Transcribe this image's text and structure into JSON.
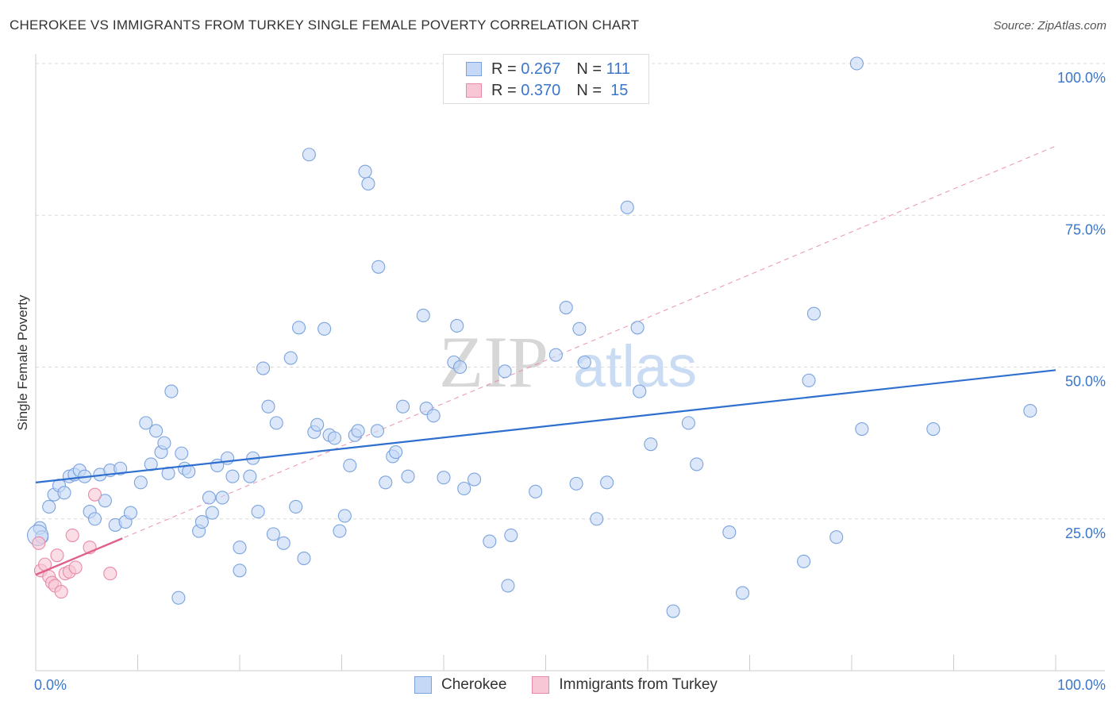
{
  "chart_data": {
    "type": "scatter",
    "title": "CHEROKEE VS IMMIGRANTS FROM TURKEY SINGLE FEMALE POVERTY CORRELATION CHART",
    "source": "Source: ZipAtlas.com",
    "ylabel": "Single Female Poverty",
    "xlim": [
      0,
      100
    ],
    "ylim": [
      0,
      100
    ],
    "x_tick_labels": [
      "0.0%",
      "100.0%"
    ],
    "y_ticks": [
      25,
      50,
      75,
      100
    ],
    "y_tick_labels": [
      "25.0%",
      "50.0%",
      "75.0%",
      "100.0%"
    ],
    "watermark": {
      "zip": "ZIP",
      "atlas": "atlas"
    },
    "legend": [
      {
        "series": "Cherokee",
        "r_label": "R =",
        "r": "0.267",
        "n_label": "N =",
        "n": "111"
      },
      {
        "series": "Immigrants from Turkey",
        "r_label": "R =",
        "r": "0.370",
        "n_label": "N =",
        "n": "15"
      }
    ],
    "colors": {
      "cherokee_fill": "#c5d8f5",
      "cherokee_stroke": "#7aa3de",
      "cherokee_line": "#2f6fcf",
      "turkey_fill": "#f8c7d6",
      "turkey_stroke": "#e98aa8",
      "turkey_line": "#e0608a",
      "grid": "#d9d9d9"
    },
    "series": [
      {
        "name": "Cherokee",
        "trend": {
          "x0": 0,
          "y0": 31.0,
          "x1": 100,
          "y1": 49.5
        },
        "points": [
          [
            0.4,
            23.5
          ],
          [
            0.6,
            22.0
          ],
          [
            1.3,
            27.0
          ],
          [
            1.8,
            29.0
          ],
          [
            2.3,
            30.5
          ],
          [
            2.8,
            29.3
          ],
          [
            3.3,
            32.0
          ],
          [
            3.8,
            32.3
          ],
          [
            4.3,
            33.0
          ],
          [
            4.8,
            32.0
          ],
          [
            5.3,
            26.2
          ],
          [
            5.8,
            25.0
          ],
          [
            6.3,
            32.3
          ],
          [
            6.8,
            28.0
          ],
          [
            7.3,
            33.0
          ],
          [
            7.8,
            24.0
          ],
          [
            8.3,
            33.3
          ],
          [
            8.8,
            24.5
          ],
          [
            9.3,
            26.0
          ],
          [
            10.3,
            31.0
          ],
          [
            10.8,
            40.8
          ],
          [
            11.3,
            34.0
          ],
          [
            11.8,
            39.5
          ],
          [
            12.3,
            36.0
          ],
          [
            12.6,
            37.5
          ],
          [
            13.0,
            32.5
          ],
          [
            13.3,
            46.0
          ],
          [
            14.0,
            12.0
          ],
          [
            14.3,
            35.8
          ],
          [
            14.6,
            33.3
          ],
          [
            15.0,
            32.8
          ],
          [
            16.0,
            23.0
          ],
          [
            16.3,
            24.5
          ],
          [
            17.0,
            28.5
          ],
          [
            17.3,
            26.0
          ],
          [
            17.8,
            33.8
          ],
          [
            18.3,
            28.5
          ],
          [
            18.8,
            35.0
          ],
          [
            19.3,
            32.0
          ],
          [
            20.0,
            20.3
          ],
          [
            20.0,
            16.5
          ],
          [
            21.0,
            32.0
          ],
          [
            21.3,
            35.0
          ],
          [
            21.8,
            26.2
          ],
          [
            22.3,
            49.8
          ],
          [
            22.8,
            43.5
          ],
          [
            23.3,
            22.5
          ],
          [
            23.6,
            40.8
          ],
          [
            24.3,
            21.0
          ],
          [
            25.0,
            51.5
          ],
          [
            25.5,
            27.0
          ],
          [
            25.8,
            56.5
          ],
          [
            26.3,
            18.5
          ],
          [
            26.8,
            85.0
          ],
          [
            27.3,
            39.3
          ],
          [
            27.6,
            40.5
          ],
          [
            28.3,
            56.3
          ],
          [
            28.8,
            38.8
          ],
          [
            29.3,
            38.3
          ],
          [
            29.8,
            23.0
          ],
          [
            30.3,
            25.5
          ],
          [
            30.8,
            33.8
          ],
          [
            31.3,
            38.8
          ],
          [
            31.6,
            39.5
          ],
          [
            32.3,
            82.2
          ],
          [
            32.6,
            80.2
          ],
          [
            33.5,
            39.5
          ],
          [
            33.6,
            66.5
          ],
          [
            34.3,
            31.0
          ],
          [
            35.0,
            35.3
          ],
          [
            35.3,
            36.0
          ],
          [
            36.0,
            43.5
          ],
          [
            36.5,
            32.0
          ],
          [
            38.0,
            58.5
          ],
          [
            38.3,
            43.2
          ],
          [
            39.0,
            42.0
          ],
          [
            40.0,
            31.8
          ],
          [
            41.0,
            50.8
          ],
          [
            41.3,
            56.8
          ],
          [
            41.6,
            50.0
          ],
          [
            42.0,
            30.0
          ],
          [
            43.0,
            31.5
          ],
          [
            44.5,
            21.3
          ],
          [
            46.0,
            49.3
          ],
          [
            46.3,
            14.0
          ],
          [
            46.6,
            22.3
          ],
          [
            49.0,
            29.5
          ],
          [
            51.0,
            52.0
          ],
          [
            52.0,
            59.8
          ],
          [
            53.0,
            30.8
          ],
          [
            53.3,
            56.3
          ],
          [
            53.8,
            50.8
          ],
          [
            55.0,
            25.0
          ],
          [
            56.0,
            31.0
          ],
          [
            58.0,
            76.3
          ],
          [
            59.0,
            56.5
          ],
          [
            59.2,
            46.0
          ],
          [
            60.3,
            37.3
          ],
          [
            62.5,
            9.8
          ],
          [
            64.0,
            40.8
          ],
          [
            64.8,
            34.0
          ],
          [
            68.0,
            22.8
          ],
          [
            69.3,
            12.8
          ],
          [
            75.3,
            18.0
          ],
          [
            75.8,
            47.8
          ],
          [
            76.3,
            58.8
          ],
          [
            78.5,
            22.0
          ],
          [
            80.5,
            100.0
          ],
          [
            81.0,
            39.8
          ],
          [
            88.0,
            39.8
          ],
          [
            97.5,
            42.8
          ]
        ]
      },
      {
        "name": "Immigrants from Turkey",
        "trend": {
          "x0": 0,
          "y0": 15.8,
          "x1": 8.5,
          "y1": 21.8
        },
        "trend_ext": {
          "x0": 0,
          "y0": 15.8,
          "x1": 100,
          "y1": 86.4
        },
        "points": [
          [
            0.3,
            21.0
          ],
          [
            0.5,
            16.5
          ],
          [
            0.9,
            17.5
          ],
          [
            1.3,
            15.5
          ],
          [
            1.6,
            14.5
          ],
          [
            1.9,
            14.0
          ],
          [
            2.1,
            19.0
          ],
          [
            2.5,
            13.0
          ],
          [
            2.9,
            16.0
          ],
          [
            3.3,
            16.3
          ],
          [
            3.6,
            22.3
          ],
          [
            3.9,
            17.0
          ],
          [
            5.3,
            20.3
          ],
          [
            5.8,
            29.0
          ],
          [
            7.3,
            16.0
          ]
        ]
      }
    ]
  }
}
